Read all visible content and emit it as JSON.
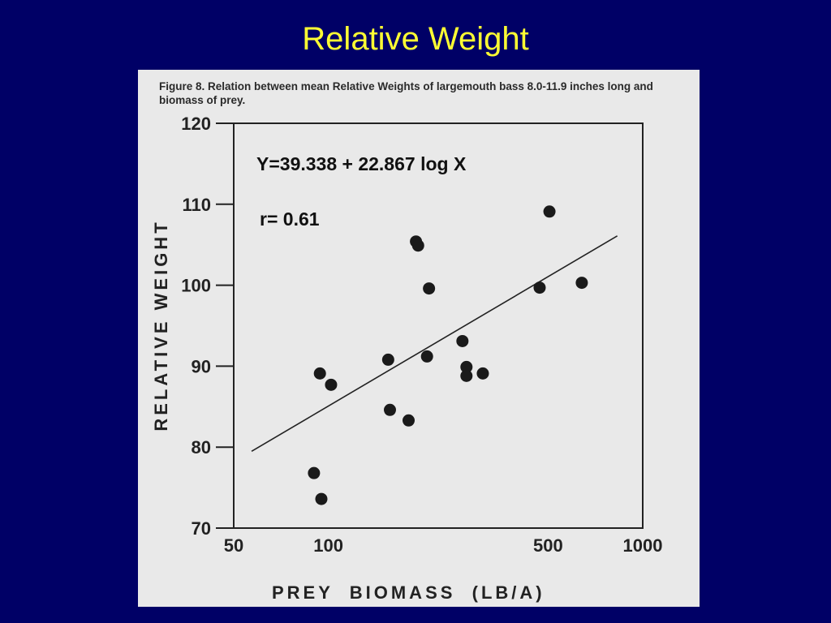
{
  "slide": {
    "title": "Relative Weight"
  },
  "figure": {
    "caption": "Figure 8.   Relation between mean Relative Weights of largemouth bass 8.0-11.9 inches long and biomass of prey.",
    "equation": "Y=39.338 + 22.867 log X",
    "r_label": "r= 0.61"
  },
  "colors": {
    "background": "#000066",
    "title": "#ffff33",
    "paper": "#e9e9e9",
    "ink": "#222222"
  },
  "chart_data": {
    "type": "scatter",
    "xlabel": "PREY  BIOMASS  (LB/A)",
    "ylabel": "RELATIVE WEIGHT",
    "xscale": "log",
    "xlim": [
      50,
      1000
    ],
    "ylim": [
      70,
      120
    ],
    "xticks": [
      50,
      100,
      500,
      1000
    ],
    "xtick_labels": [
      "50",
      "100",
      "500",
      "1000"
    ],
    "yticks": [
      70,
      80,
      90,
      100,
      110,
      120
    ],
    "ytick_labels": [
      "70",
      "80",
      "90",
      "100",
      "110",
      "120"
    ],
    "points": [
      {
        "x": 90,
        "y": 76.8
      },
      {
        "x": 95,
        "y": 73.6
      },
      {
        "x": 94,
        "y": 89.1
      },
      {
        "x": 102,
        "y": 87.7
      },
      {
        "x": 155,
        "y": 90.8
      },
      {
        "x": 157,
        "y": 84.6
      },
      {
        "x": 180,
        "y": 83.3
      },
      {
        "x": 190,
        "y": 105.4
      },
      {
        "x": 193,
        "y": 104.9
      },
      {
        "x": 206,
        "y": 91.2
      },
      {
        "x": 209,
        "y": 99.6
      },
      {
        "x": 267,
        "y": 93.1
      },
      {
        "x": 275,
        "y": 89.9
      },
      {
        "x": 275,
        "y": 88.8
      },
      {
        "x": 310,
        "y": 89.1
      },
      {
        "x": 470,
        "y": 99.7
      },
      {
        "x": 505,
        "y": 109.1
      },
      {
        "x": 640,
        "y": 100.3
      }
    ],
    "fit": {
      "intercept": 39.338,
      "slope": 22.867,
      "x_range": [
        57,
        830
      ]
    },
    "grid": false,
    "legend": "none"
  }
}
